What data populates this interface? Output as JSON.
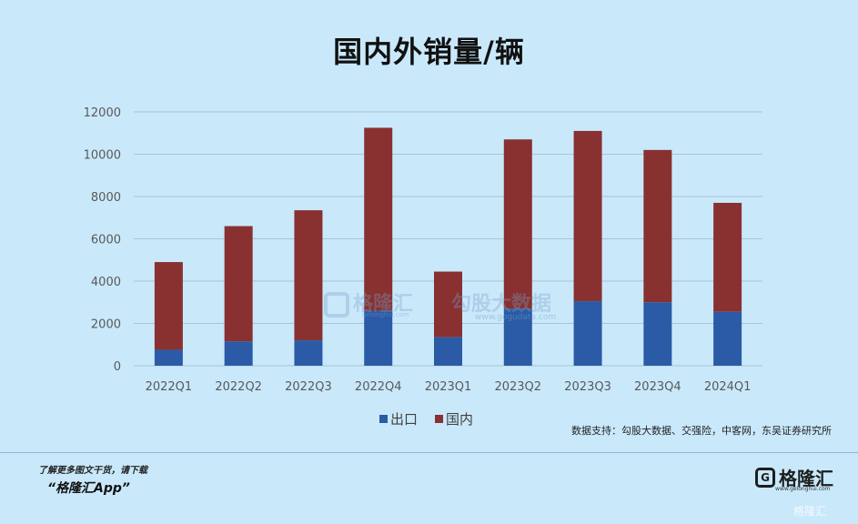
{
  "title": "国内外销量/辆",
  "source": "数据支持：勾股大数据、交强险，中客网，东吴证券研究所",
  "promo_line1": "了解更多图文干货，请下载",
  "promo_line2": "“格隆汇App”",
  "brand": {
    "logo": "G",
    "name": "格隆汇",
    "url": "www.gelonghui.com"
  },
  "corner_mark": "格隆汇",
  "watermarks": {
    "left": "格隆汇",
    "left_url": "gelonghui.com",
    "right": "勾股大数据",
    "right_url": "www.gogudata.com"
  },
  "colors": {
    "background": "#c9e9fb",
    "export": "#2b5aa6",
    "domestic": "#883130",
    "grid": "#a8c4d6"
  },
  "chart_data": {
    "type": "bar",
    "stacked": true,
    "title": "国内外销量/辆",
    "categories": [
      "2022Q1",
      "2022Q2",
      "2022Q3",
      "2022Q4",
      "2023Q1",
      "2023Q2",
      "2023Q3",
      "2023Q4",
      "2024Q1"
    ],
    "series": [
      {
        "name": "出口",
        "values": [
          750,
          1150,
          1200,
          2600,
          1350,
          2700,
          3050,
          3000,
          2550
        ]
      },
      {
        "name": "国内",
        "values": [
          4150,
          5450,
          6150,
          8650,
          3100,
          8000,
          8050,
          7200,
          5150
        ]
      }
    ],
    "ylim": [
      0,
      12000
    ],
    "yticks": [
      0,
      2000,
      4000,
      6000,
      8000,
      10000,
      12000
    ],
    "grid": true,
    "legend_position": "bottom"
  }
}
